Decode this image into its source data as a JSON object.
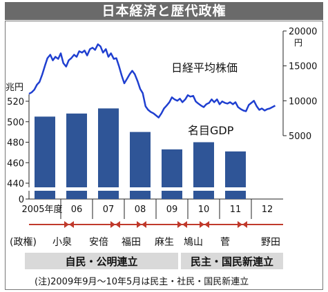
{
  "title": "日本経済と歴代政権",
  "chart_data": {
    "type": "bar+line",
    "bar_series": {
      "name": "名目GDP",
      "unit_label": "兆円",
      "categories": [
        "2005年度",
        "06",
        "07",
        "08",
        "09",
        "10",
        "11",
        "12"
      ],
      "values": [
        505,
        508,
        513,
        490,
        473,
        480,
        471,
        null
      ],
      "ylim": [
        0,
        525
      ],
      "y_ticks": [
        "0",
        "440",
        "460",
        "480",
        "500",
        "520"
      ],
      "axis_break": true
    },
    "line_series": {
      "name": "日経平均株価",
      "unit_label": "円",
      "y_ticks": [
        "5000",
        "10000",
        "15000",
        "20000"
      ],
      "ylim": [
        5000,
        20000
      ],
      "x": [
        2005.0,
        2005.08,
        2005.17,
        2005.25,
        2005.33,
        2005.42,
        2005.5,
        2005.58,
        2005.67,
        2005.75,
        2005.83,
        2005.92,
        2006.0,
        2006.08,
        2006.17,
        2006.25,
        2006.33,
        2006.42,
        2006.5,
        2006.58,
        2006.67,
        2006.75,
        2006.83,
        2006.92,
        2007.0,
        2007.08,
        2007.17,
        2007.25,
        2007.33,
        2007.42,
        2007.5,
        2007.58,
        2007.67,
        2007.75,
        2007.83,
        2007.92,
        2008.0,
        2008.08,
        2008.17,
        2008.25,
        2008.33,
        2008.42,
        2008.5,
        2008.58,
        2008.67,
        2008.75,
        2008.83,
        2008.92,
        2009.0,
        2009.08,
        2009.17,
        2009.25,
        2009.33,
        2009.42,
        2009.5,
        2009.58,
        2009.67,
        2009.75,
        2009.83,
        2009.92,
        2010.0,
        2010.08,
        2010.17,
        2010.25,
        2010.33,
        2010.42,
        2010.5,
        2010.58,
        2010.67,
        2010.75,
        2010.83,
        2010.92,
        2011.0,
        2011.08,
        2011.17,
        2011.25,
        2011.33,
        2011.42,
        2011.5,
        2011.58,
        2011.67,
        2011.75,
        2011.83,
        2011.92,
        2012.0,
        2012.08,
        2012.17,
        2012.25,
        2012.33,
        2012.42,
        2012.5,
        2012.58,
        2012.75
      ],
      "values": [
        11000,
        11200,
        11600,
        12300,
        12700,
        13800,
        15000,
        16100,
        16600,
        15800,
        16300,
        16000,
        16800,
        15400,
        14900,
        15800,
        16100,
        16600,
        16300,
        17100,
        16900,
        17200,
        16500,
        17400,
        17600,
        17300,
        18100,
        17800,
        16900,
        17400,
        16300,
        16800,
        16000,
        16100,
        15000,
        13600,
        12500,
        13100,
        13800,
        14300,
        13800,
        12800,
        11700,
        11100,
        9200,
        8700,
        8400,
        8200,
        7900,
        7600,
        8200,
        8900,
        9300,
        9800,
        10500,
        10200,
        10000,
        10300,
        9800,
        10200,
        10800,
        10600,
        10700,
        9900,
        9600,
        9300,
        9100,
        9500,
        9700,
        10200,
        9800,
        10200,
        9500,
        9900,
        9700,
        9600,
        9800,
        9500,
        9800,
        9100,
        8800,
        8600,
        8500,
        9400,
        9700,
        10000,
        9200,
        8700,
        8900,
        8600,
        8800,
        8900,
        9300
      ]
    },
    "x_labels": [
      "2005年度",
      "06",
      "07",
      "08",
      "09",
      "10",
      "11",
      "12"
    ],
    "colors": {
      "bar": "#2f5597",
      "line": "#1f3fd0",
      "band": "#d9d9d9"
    }
  },
  "administrations": {
    "label": "(政権)",
    "names": [
      "小泉",
      "安倍",
      "福田",
      "麻生",
      "鳩山",
      "菅",
      "野田"
    ],
    "coalitions": [
      "自民・公明連立",
      "民主・国民新連立"
    ]
  },
  "note": "(注)2009年9月～10年5月は民主・社民・国民新連立"
}
